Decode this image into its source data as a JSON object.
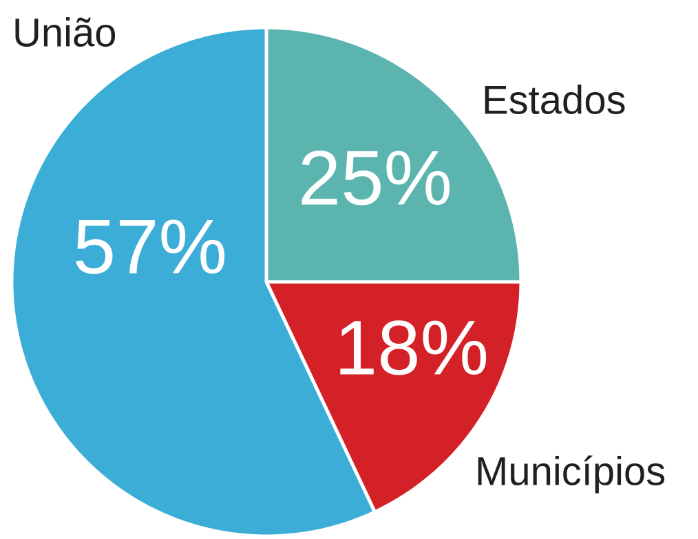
{
  "chart_data": {
    "type": "pie",
    "categories": [
      "Estados",
      "Municípios",
      "União"
    ],
    "values": [
      25,
      18,
      57
    ],
    "value_labels": [
      "25%",
      "18%",
      "57%"
    ],
    "colors": [
      "#5bb4ae",
      "#d42027",
      "#3badd6"
    ]
  }
}
